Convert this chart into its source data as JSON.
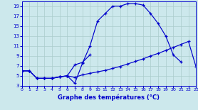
{
  "bg_color": "#cce8ec",
  "line_color": "#0000cc",
  "grid_color": "#aacccc",
  "xlabel": "Graphe des températures (°C)",
  "xlim": [
    0,
    23
  ],
  "ylim": [
    3,
    20
  ],
  "yticks": [
    3,
    5,
    7,
    9,
    11,
    13,
    15,
    17,
    19
  ],
  "xticks": [
    0,
    1,
    2,
    3,
    4,
    5,
    6,
    7,
    8,
    9,
    10,
    11,
    12,
    13,
    14,
    15,
    16,
    17,
    18,
    19,
    20,
    21,
    22,
    23
  ],
  "s1_x": [
    0,
    1,
    2,
    3,
    4,
    5,
    6,
    7,
    8,
    9,
    10,
    11,
    12,
    13,
    14,
    15,
    16,
    17,
    18,
    19,
    20,
    21,
    22,
    23
  ],
  "s1_y": [
    6.0,
    6.0,
    4.5,
    4.5,
    4.5,
    4.8,
    5.0,
    4.7,
    5.2,
    5.5,
    5.8,
    6.1,
    6.5,
    6.9,
    7.4,
    7.9,
    8.4,
    9.0,
    9.5,
    10.1,
    10.7,
    11.3,
    11.9,
    6.8
  ],
  "s2_x": [
    0,
    1,
    2,
    3,
    4,
    5,
    6,
    7,
    8,
    9,
    10,
    11,
    12,
    13,
    14,
    15,
    16,
    17,
    18,
    19,
    20,
    21
  ],
  "s2_y": [
    6.0,
    6.0,
    4.5,
    4.5,
    4.5,
    4.8,
    5.0,
    3.5,
    7.5,
    11.0,
    16.0,
    17.5,
    19.0,
    19.0,
    19.5,
    19.5,
    19.2,
    17.5,
    15.5,
    13.0,
    9.2,
    7.8
  ],
  "s3_x": [
    0,
    1,
    2,
    3,
    4,
    5,
    6,
    7,
    8,
    9
  ],
  "s3_y": [
    6.0,
    6.0,
    4.5,
    4.5,
    4.5,
    4.8,
    5.0,
    7.2,
    7.7,
    9.2
  ]
}
